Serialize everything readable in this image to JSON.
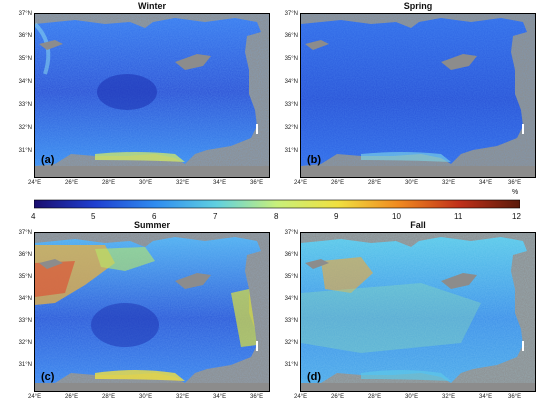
{
  "panels": [
    {
      "title": "Winter",
      "letter": "(a)",
      "theme": "winter"
    },
    {
      "title": "Spring",
      "letter": "(b)",
      "theme": "spring"
    },
    {
      "title": "Summer",
      "letter": "(c)",
      "theme": "summer"
    },
    {
      "title": "Fall",
      "letter": "(d)",
      "theme": "fall"
    }
  ],
  "lon_ticks": [
    "24°E",
    "26°E",
    "28°E",
    "30°E",
    "32°E",
    "34°E",
    "36°E"
  ],
  "lat_ticks": [
    "37°N",
    "36°N",
    "35°N",
    "34°N",
    "33°N",
    "32°N",
    "31°N"
  ],
  "colorbar": {
    "unit": "%",
    "ticks": [
      "4",
      "5",
      "6",
      "7",
      "8",
      "9",
      "10",
      "11",
      "12"
    ],
    "colors": [
      "#1a0d6e",
      "#1f3fd0",
      "#2f8cf0",
      "#5fd0e0",
      "#c8f07a",
      "#f0e040",
      "#f08a20",
      "#c0301a",
      "#5a1a0a"
    ]
  },
  "colors": {
    "land": "#8c8c8c",
    "winter_base": "#2d5de0",
    "spring_base": "#2e63e6",
    "summer_base": "#2f6ce8",
    "fall_base": "#40a6e6"
  }
}
